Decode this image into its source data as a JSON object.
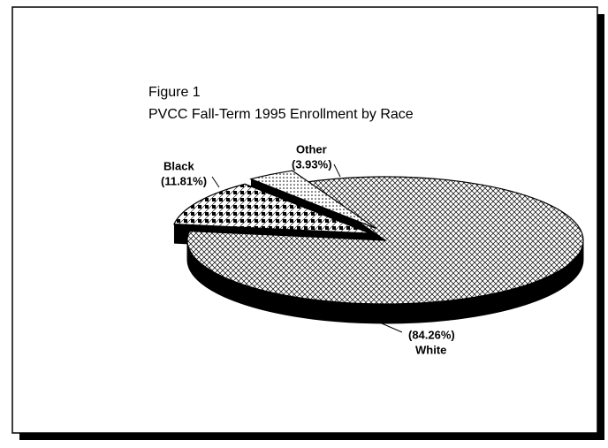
{
  "chart_data": {
    "type": "pie",
    "title": "Figure 1",
    "subtitle": "PVCC Fall-Term 1995 Enrollment by Race",
    "categories": [
      "White",
      "Black",
      "Other"
    ],
    "values": [
      84.26,
      11.81,
      3.93
    ],
    "value_labels": [
      "(84.26%)",
      "(11.81%)",
      "(3.93%)"
    ]
  }
}
